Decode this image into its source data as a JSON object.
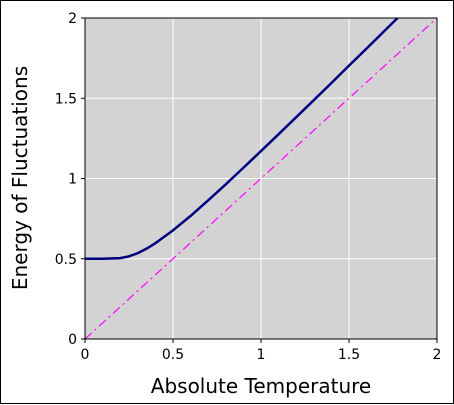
{
  "chart_data": {
    "type": "line",
    "title": "",
    "xlabel": "Absolute Temperature",
    "ylabel": "Energy of Fluctuations",
    "xlim": [
      0,
      2
    ],
    "ylim": [
      0,
      2
    ],
    "x_ticks": [
      "0",
      "0.5",
      "1",
      "1.5",
      "2"
    ],
    "y_ticks": [
      "0",
      "0.5",
      "1",
      "1.5",
      "2"
    ],
    "grid": true,
    "legend": "none",
    "colors": {
      "plot_background": "#d3d3d3",
      "grid": "#ffffff",
      "main_series": "#000080",
      "reference_line": "#ff00ff"
    },
    "series": [
      {
        "style": "solid",
        "color": "#000080",
        "x": [
          0,
          0.1,
          0.2,
          0.25,
          0.3,
          0.35,
          0.4,
          0.5,
          0.6,
          0.7,
          0.8,
          0.9,
          1.0,
          1.1,
          1.2,
          1.3,
          1.4,
          1.5,
          1.6,
          1.7,
          1.8,
          1.9,
          2.0
        ],
        "y": [
          0.5,
          0.5,
          0.504,
          0.515,
          0.535,
          0.563,
          0.597,
          0.677,
          0.767,
          0.864,
          0.964,
          1.067,
          1.171,
          1.276,
          1.382,
          1.488,
          1.595,
          1.703,
          1.81,
          1.918,
          2.026,
          2.134,
          2.242
        ]
      },
      {
        "style": "dash-dot",
        "color": "#ff00ff",
        "x": [
          0,
          2
        ],
        "y": [
          0,
          2
        ]
      }
    ]
  }
}
